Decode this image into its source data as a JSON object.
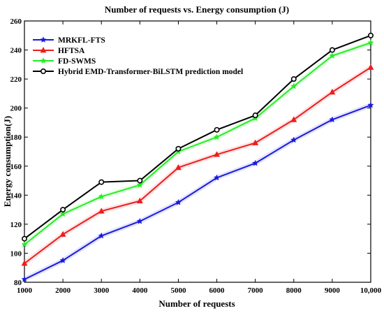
{
  "chart_data": {
    "type": "line",
    "title": "Number of requests vs. Energy consumption (J)",
    "xlabel": "Number of requests",
    "ylabel": "Energy consumption(J)",
    "x": [
      1000,
      2000,
      3000,
      4000,
      5000,
      6000,
      7000,
      8000,
      9000,
      10000
    ],
    "x_tick_labels": [
      "1000",
      "2000",
      "3000",
      "4000",
      "5000",
      "6000",
      "7000",
      "8000",
      "9000",
      "10,000"
    ],
    "xlim": [
      1000,
      10000
    ],
    "ylim": [
      80,
      260
    ],
    "y_ticks": [
      80,
      100,
      120,
      140,
      160,
      180,
      200,
      220,
      240,
      260
    ],
    "y_tick_labels": [
      "80",
      "100",
      "120",
      "140",
      "160",
      "180",
      "200",
      "220",
      "240",
      "260"
    ],
    "grid": false,
    "legend_position": "top-left",
    "series": [
      {
        "name": "MRKFL-FTS",
        "color": "#1a1adc",
        "marker": "star",
        "values": [
          82,
          95,
          112,
          122,
          135,
          152,
          162,
          178,
          192,
          202
        ]
      },
      {
        "name": "HFTSA",
        "color": "#ee1c1c",
        "marker": "triangle",
        "values": [
          93,
          113,
          129,
          136,
          159,
          168,
          176,
          192,
          211,
          228
        ]
      },
      {
        "name": "FD-SWMS",
        "color": "#22ee22",
        "marker": "star",
        "values": [
          106,
          127,
          139,
          147,
          170,
          180,
          193,
          215,
          236,
          245
        ]
      },
      {
        "name": "Hybrid EMD-Transformer-BiLSTM prediction model",
        "color": "#000000",
        "marker": "circle",
        "values": [
          110,
          130,
          149,
          150,
          172,
          185,
          195,
          220,
          240,
          250
        ]
      }
    ]
  }
}
